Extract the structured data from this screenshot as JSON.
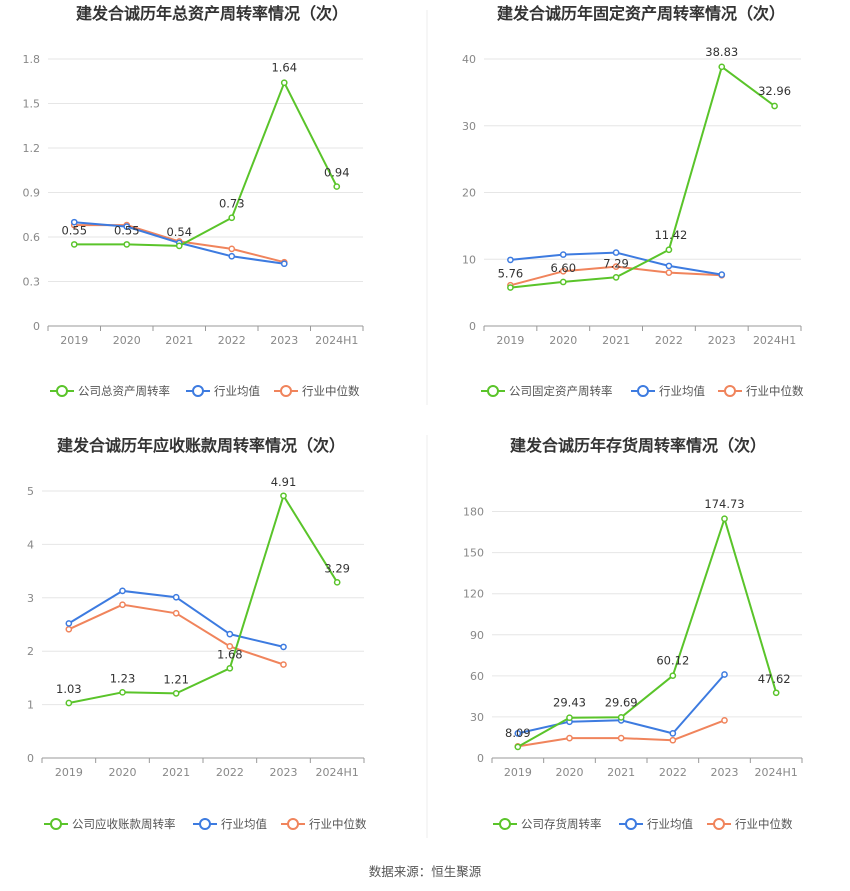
{
  "source": "数据来源：恒生聚源",
  "colors": {
    "company": "#5ac42a",
    "average": "#3d7be0",
    "median": "#f0845c"
  },
  "chart_data": [
    {
      "type": "line",
      "title": "建发合诚历年总资产周转率情况（次）",
      "categories": [
        "2019",
        "2020",
        "2021",
        "2022",
        "2023",
        "2024H1"
      ],
      "ylim": [
        0,
        1.8
      ],
      "yticks": [
        "0",
        "0.3",
        "0.6",
        "0.9",
        "1.2",
        "1.5",
        "1.8"
      ],
      "series": [
        {
          "name": "公司总资产周转率",
          "key": "company",
          "values": [
            0.55,
            0.55,
            0.54,
            0.73,
            1.64,
            0.94
          ],
          "labels": [
            "0.55",
            "0.55",
            "0.54",
            "0.73",
            "1.64",
            "0.94"
          ]
        },
        {
          "name": "行业均值",
          "key": "average",
          "values": [
            0.7,
            0.67,
            0.56,
            0.47,
            0.42,
            null
          ]
        },
        {
          "name": "行业中位数",
          "key": "median",
          "values": [
            0.68,
            0.68,
            0.57,
            0.52,
            0.43,
            null
          ]
        }
      ]
    },
    {
      "type": "line",
      "title": "建发合诚历年固定资产周转率情况（次）",
      "categories": [
        "2019",
        "2020",
        "2021",
        "2022",
        "2023",
        "2024H1"
      ],
      "ylim": [
        0,
        40
      ],
      "yticks": [
        "0",
        "10",
        "20",
        "30",
        "40"
      ],
      "series": [
        {
          "name": "公司固定资产周转率",
          "key": "company",
          "values": [
            5.76,
            6.6,
            7.29,
            11.42,
            38.83,
            32.96
          ],
          "labels": [
            "5.76",
            "6.60",
            "7.29",
            "11.42",
            "38.83",
            "32.96"
          ]
        },
        {
          "name": "行业均值",
          "key": "average",
          "values": [
            9.9,
            10.7,
            11.0,
            9.0,
            7.7,
            null
          ]
        },
        {
          "name": "行业中位数",
          "key": "median",
          "values": [
            6.1,
            8.2,
            8.9,
            8.0,
            7.6,
            null
          ]
        }
      ]
    },
    {
      "type": "line",
      "title": "建发合诚历年应收账款周转率情况（次）",
      "categories": [
        "2019",
        "2020",
        "2021",
        "2022",
        "2023",
        "2024H1"
      ],
      "ylim": [
        0,
        5
      ],
      "yticks": [
        "0",
        "1",
        "2",
        "3",
        "4",
        "5"
      ],
      "series": [
        {
          "name": "公司应收账款周转率",
          "key": "company",
          "values": [
            1.03,
            1.23,
            1.21,
            1.68,
            4.91,
            3.29
          ],
          "labels": [
            "1.03",
            "1.23",
            "1.21",
            "1.68",
            "4.91",
            "3.29"
          ]
        },
        {
          "name": "行业均值",
          "key": "average",
          "values": [
            2.52,
            3.13,
            3.01,
            2.32,
            2.08,
            null
          ]
        },
        {
          "name": "行业中位数",
          "key": "median",
          "values": [
            2.41,
            2.87,
            2.71,
            2.09,
            1.75,
            null
          ]
        }
      ]
    },
    {
      "type": "line",
      "title": "建发合诚历年存货周转率情况（次）",
      "categories": [
        "2019",
        "2020",
        "2021",
        "2022",
        "2023",
        "2024H1"
      ],
      "ylim": [
        0,
        195
      ],
      "yticks": [
        "0",
        "30",
        "60",
        "90",
        "120",
        "150",
        "180"
      ],
      "series": [
        {
          "name": "公司存货周转率",
          "key": "company",
          "values": [
            8.09,
            29.43,
            29.69,
            60.12,
            174.73,
            47.62
          ],
          "labels": [
            "8.09",
            "29.43",
            "29.69",
            "60.12",
            "174.73",
            "47.62"
          ]
        },
        {
          "name": "行业均值",
          "key": "average",
          "values": [
            18.0,
            26.5,
            27.5,
            18.0,
            61.0,
            null
          ]
        },
        {
          "name": "行业中位数",
          "key": "median",
          "values": [
            8.5,
            14.5,
            14.5,
            13.0,
            27.5,
            null
          ]
        }
      ]
    }
  ]
}
